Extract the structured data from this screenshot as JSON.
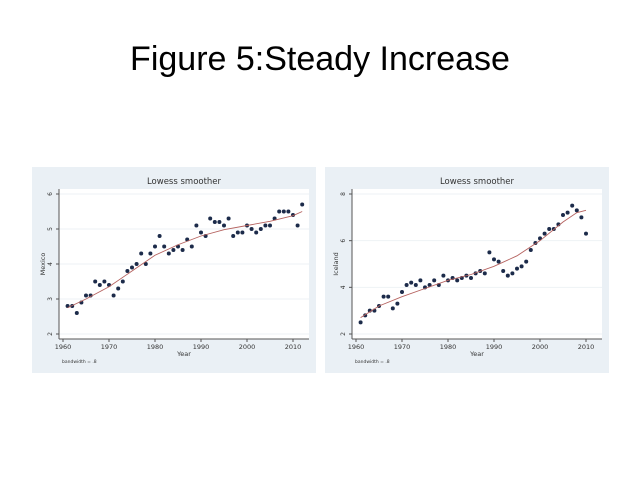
{
  "slide": {
    "title": "Figure 5:Steady Increase"
  },
  "colors": {
    "panel_bg": "#eaf0f5",
    "points": "#1c2b4a",
    "smoother": "#b5625f"
  },
  "chart_data": [
    {
      "type": "scatter",
      "title": "Lowess smoother",
      "xlabel": "Year",
      "ylabel": "Mexico",
      "note": "bandwidth = .8",
      "xlim": [
        1960,
        2012
      ],
      "ylim": [
        2,
        6
      ],
      "xticks": [
        1960,
        1970,
        1980,
        1990,
        2000,
        2010
      ],
      "yticks": [
        2,
        3,
        4,
        5,
        6
      ],
      "grid": true,
      "x": [
        1961,
        1962,
        1963,
        1964,
        1965,
        1966,
        1967,
        1968,
        1969,
        1970,
        1971,
        1972,
        1973,
        1974,
        1975,
        1976,
        1977,
        1978,
        1979,
        1980,
        1981,
        1982,
        1983,
        1984,
        1985,
        1986,
        1987,
        1988,
        1989,
        1990,
        1991,
        1992,
        1993,
        1994,
        1995,
        1996,
        1997,
        1998,
        1999,
        2000,
        2001,
        2002,
        2003,
        2004,
        2005,
        2006,
        2007,
        2008,
        2009,
        2010,
        2011,
        2012
      ],
      "y": [
        2.8,
        2.8,
        2.6,
        2.9,
        3.1,
        3.1,
        3.5,
        3.4,
        3.5,
        3.4,
        3.1,
        3.3,
        3.5,
        3.8,
        3.9,
        4.0,
        4.3,
        4.0,
        4.3,
        4.5,
        4.8,
        4.5,
        4.3,
        4.4,
        4.5,
        4.4,
        4.7,
        4.5,
        5.1,
        4.9,
        4.8,
        5.3,
        5.2,
        5.2,
        5.1,
        5.3,
        4.8,
        4.9,
        4.9,
        5.1,
        5.0,
        4.9,
        5.0,
        5.1,
        5.1,
        5.3,
        5.5,
        5.5,
        5.5,
        5.4,
        5.1,
        5.7
      ],
      "smoother": {
        "x": [
          1961,
          1965,
          1970,
          1975,
          1980,
          1985,
          1990,
          1995,
          2000,
          2005,
          2010,
          2012
        ],
        "y": [
          2.75,
          3.0,
          3.35,
          3.8,
          4.25,
          4.55,
          4.8,
          4.98,
          5.1,
          5.22,
          5.38,
          5.5
        ]
      }
    },
    {
      "type": "scatter",
      "title": "Lowess smoother",
      "xlabel": "Year",
      "ylabel": "Iceland",
      "note": "bandwidth = .8",
      "xlim": [
        1960,
        2010
      ],
      "ylim": [
        2,
        8
      ],
      "xticks": [
        1960,
        1970,
        1980,
        1990,
        2000,
        2010
      ],
      "yticks": [
        2,
        4,
        6,
        8
      ],
      "grid": true,
      "x": [
        1961,
        1962,
        1963,
        1964,
        1965,
        1966,
        1967,
        1968,
        1969,
        1970,
        1971,
        1972,
        1973,
        1974,
        1975,
        1976,
        1977,
        1978,
        1979,
        1980,
        1981,
        1982,
        1983,
        1984,
        1985,
        1986,
        1987,
        1988,
        1989,
        1990,
        1991,
        1992,
        1993,
        1994,
        1995,
        1996,
        1997,
        1998,
        1999,
        2000,
        2001,
        2002,
        2003,
        2004,
        2005,
        2006,
        2007,
        2008,
        2009,
        2010
      ],
      "y": [
        2.5,
        2.8,
        3.0,
        3.0,
        3.2,
        3.6,
        3.6,
        3.1,
        3.3,
        3.8,
        4.1,
        4.2,
        4.1,
        4.3,
        4.0,
        4.1,
        4.3,
        4.1,
        4.5,
        4.3,
        4.4,
        4.3,
        4.4,
        4.5,
        4.4,
        4.6,
        4.7,
        4.6,
        5.5,
        5.2,
        5.1,
        4.7,
        4.5,
        4.6,
        4.8,
        4.9,
        5.1,
        5.6,
        5.9,
        6.1,
        6.3,
        6.5,
        6.5,
        6.7,
        7.1,
        7.2,
        7.5,
        7.3,
        7.0,
        6.3
      ],
      "smoother": {
        "x": [
          1961,
          1965,
          1970,
          1975,
          1980,
          1985,
          1990,
          1995,
          2000,
          2005,
          2008,
          2010
        ],
        "y": [
          2.7,
          3.2,
          3.6,
          3.95,
          4.3,
          4.55,
          4.9,
          5.35,
          6.0,
          6.8,
          7.2,
          7.3
        ]
      }
    }
  ]
}
